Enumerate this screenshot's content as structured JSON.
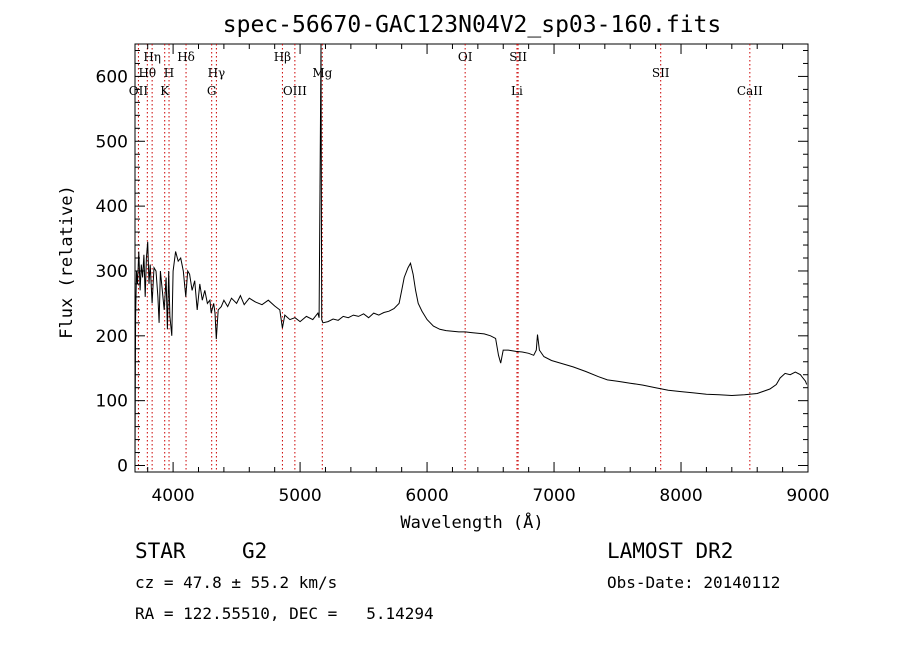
{
  "chart_data": {
    "type": "line",
    "title": "spec-56670-GAC123N04V2_sp03-160.fits",
    "xlabel": "Wavelength (Å)",
    "ylabel": "Flux (relative)",
    "xlim": [
      3700,
      9000
    ],
    "ylim": [
      -10,
      650
    ],
    "x_ticks": [
      4000,
      5000,
      6000,
      7000,
      8000,
      9000
    ],
    "y_ticks": [
      0,
      100,
      200,
      300,
      400,
      500,
      600
    ],
    "spectrum": [
      [
        3700,
        10
      ],
      [
        3705,
        230
      ],
      [
        3712,
        300
      ],
      [
        3720,
        280
      ],
      [
        3730,
        330
      ],
      [
        3740,
        270
      ],
      [
        3750,
        310
      ],
      [
        3760,
        290
      ],
      [
        3770,
        325
      ],
      [
        3780,
        260
      ],
      [
        3790,
        320
      ],
      [
        3800,
        345
      ],
      [
        3810,
        280
      ],
      [
        3820,
        310
      ],
      [
        3835,
        250
      ],
      [
        3850,
        305
      ],
      [
        3865,
        300
      ],
      [
        3880,
        260
      ],
      [
        3890,
        220
      ],
      [
        3900,
        300
      ],
      [
        3915,
        270
      ],
      [
        3930,
        240
      ],
      [
        3945,
        290
      ],
      [
        3955,
        210
      ],
      [
        3965,
        300
      ],
      [
        3975,
        230
      ],
      [
        3990,
        200
      ],
      [
        4000,
        300
      ],
      [
        4020,
        330
      ],
      [
        4040,
        315
      ],
      [
        4060,
        320
      ],
      [
        4080,
        300
      ],
      [
        4100,
        260
      ],
      [
        4115,
        300
      ],
      [
        4130,
        295
      ],
      [
        4150,
        270
      ],
      [
        4170,
        285
      ],
      [
        4190,
        240
      ],
      [
        4210,
        280
      ],
      [
        4230,
        255
      ],
      [
        4250,
        270
      ],
      [
        4270,
        250
      ],
      [
        4290,
        255
      ],
      [
        4300,
        235
      ],
      [
        4320,
        250
      ],
      [
        4330,
        235
      ],
      [
        4340,
        195
      ],
      [
        4355,
        240
      ],
      [
        4380,
        245
      ],
      [
        4400,
        255
      ],
      [
        4430,
        245
      ],
      [
        4460,
        258
      ],
      [
        4500,
        250
      ],
      [
        4530,
        262
      ],
      [
        4560,
        248
      ],
      [
        4600,
        258
      ],
      [
        4650,
        252
      ],
      [
        4700,
        248
      ],
      [
        4750,
        255
      ],
      [
        4800,
        246
      ],
      [
        4840,
        240
      ],
      [
        4861,
        212
      ],
      [
        4880,
        232
      ],
      [
        4920,
        225
      ],
      [
        4960,
        228
      ],
      [
        5000,
        222
      ],
      [
        5050,
        230
      ],
      [
        5100,
        225
      ],
      [
        5140,
        235
      ],
      [
        5150,
        228
      ],
      [
        5165,
        650
      ],
      [
        5170,
        225
      ],
      [
        5180,
        220
      ],
      [
        5220,
        222
      ],
      [
        5260,
        226
      ],
      [
        5300,
        224
      ],
      [
        5340,
        230
      ],
      [
        5380,
        228
      ],
      [
        5420,
        232
      ],
      [
        5460,
        230
      ],
      [
        5500,
        234
      ],
      [
        5540,
        228
      ],
      [
        5580,
        235
      ],
      [
        5620,
        232
      ],
      [
        5660,
        236
      ],
      [
        5700,
        238
      ],
      [
        5740,
        242
      ],
      [
        5780,
        250
      ],
      [
        5800,
        270
      ],
      [
        5820,
        290
      ],
      [
        5850,
        305
      ],
      [
        5870,
        312
      ],
      [
        5890,
        295
      ],
      [
        5910,
        270
      ],
      [
        5930,
        250
      ],
      [
        5960,
        238
      ],
      [
        6000,
        225
      ],
      [
        6050,
        215
      ],
      [
        6100,
        210
      ],
      [
        6150,
        208
      ],
      [
        6200,
        207
      ],
      [
        6250,
        206
      ],
      [
        6300,
        206
      ],
      [
        6350,
        205
      ],
      [
        6400,
        204
      ],
      [
        6450,
        203
      ],
      [
        6500,
        200
      ],
      [
        6540,
        196
      ],
      [
        6563,
        170
      ],
      [
        6580,
        158
      ],
      [
        6600,
        178
      ],
      [
        6640,
        178
      ],
      [
        6700,
        176
      ],
      [
        6750,
        175
      ],
      [
        6800,
        173
      ],
      [
        6840,
        170
      ],
      [
        6860,
        178
      ],
      [
        6870,
        202
      ],
      [
        6885,
        178
      ],
      [
        6920,
        168
      ],
      [
        6980,
        162
      ],
      [
        7050,
        158
      ],
      [
        7150,
        152
      ],
      [
        7250,
        145
      ],
      [
        7350,
        137
      ],
      [
        7420,
        132
      ],
      [
        7500,
        130
      ],
      [
        7600,
        127
      ],
      [
        7700,
        124
      ],
      [
        7800,
        120
      ],
      [
        7900,
        116
      ],
      [
        8000,
        114
      ],
      [
        8100,
        112
      ],
      [
        8200,
        110
      ],
      [
        8300,
        109
      ],
      [
        8400,
        108
      ],
      [
        8500,
        109
      ],
      [
        8600,
        111
      ],
      [
        8700,
        118
      ],
      [
        8750,
        125
      ],
      [
        8780,
        135
      ],
      [
        8820,
        142
      ],
      [
        8860,
        140
      ],
      [
        8900,
        144
      ],
      [
        8940,
        140
      ],
      [
        8960,
        135
      ],
      [
        8980,
        130
      ],
      [
        8990,
        125
      ]
    ],
    "spectral_lines": [
      {
        "label": "Hη",
        "x": 3835,
        "row": 1
      },
      {
        "label": "Hθ",
        "x": 3797,
        "row": 2
      },
      {
        "label": "OII",
        "x": 3727,
        "row": 3
      },
      {
        "label": "Hδ",
        "x": 4102,
        "row": 1
      },
      {
        "label": "H",
        "x": 3968,
        "row": 2
      },
      {
        "label": "K",
        "x": 3934,
        "row": 3
      },
      {
        "label": "Hγ",
        "x": 4341,
        "row": 2
      },
      {
        "label": "G",
        "x": 4304,
        "row": 3
      },
      {
        "label": "Hβ",
        "x": 4861,
        "row": 1
      },
      {
        "label": "OIII",
        "x": 4959,
        "row": 3
      },
      {
        "label": "Mg",
        "x": 5175,
        "row": 2
      },
      {
        "label": "OI",
        "x": 6300,
        "row": 1
      },
      {
        "label": "SII",
        "x": 6717,
        "row": 1
      },
      {
        "label": "Li",
        "x": 6708,
        "row": 3
      },
      {
        "label": "SII",
        "x": 7840,
        "row": 2
      },
      {
        "label": "CaII",
        "x": 8542,
        "row": 3
      }
    ],
    "grid": false,
    "line_color": "#000000",
    "marker_color": "#cc0000"
  },
  "info": {
    "object_class": "STAR",
    "subclass": "G2",
    "cz": "cz = 47.8 ± 55.2 km/s",
    "coords": "RA = 122.55510, DEC =   5.14294",
    "survey": "LAMOST DR2",
    "obs_date": "Obs-Date: 20140112"
  }
}
